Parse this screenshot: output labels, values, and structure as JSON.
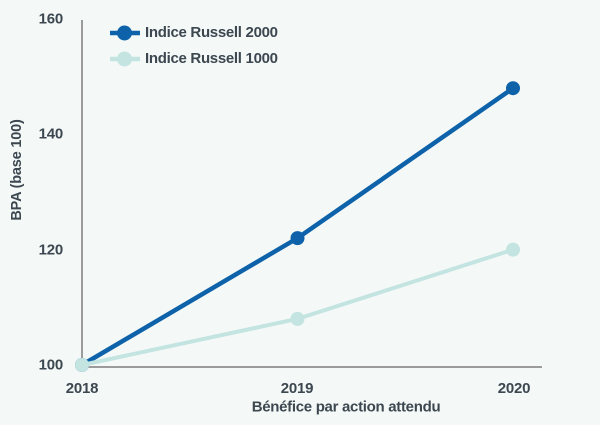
{
  "chart_data": {
    "type": "line",
    "x": [
      "2018",
      "2019",
      "2020"
    ],
    "series": [
      {
        "name": "Indice Russell 2000",
        "color": "#0e62a9",
        "values": [
          100,
          122,
          148
        ]
      },
      {
        "name": "Indice Russell 1000",
        "color": "#c3e4e1",
        "values": [
          100,
          108,
          120
        ]
      }
    ],
    "title": "",
    "xlabel": "Bénéfice par action attendu",
    "ylabel": "BPA (base 100)",
    "ylim": [
      100,
      160
    ],
    "yticks": [
      100,
      120,
      140,
      160
    ],
    "grid": false,
    "legend_position": "top-left",
    "colors": {
      "background": "#f4f9f8",
      "axis": "#9b9b9b",
      "text": "#3c4750"
    }
  }
}
